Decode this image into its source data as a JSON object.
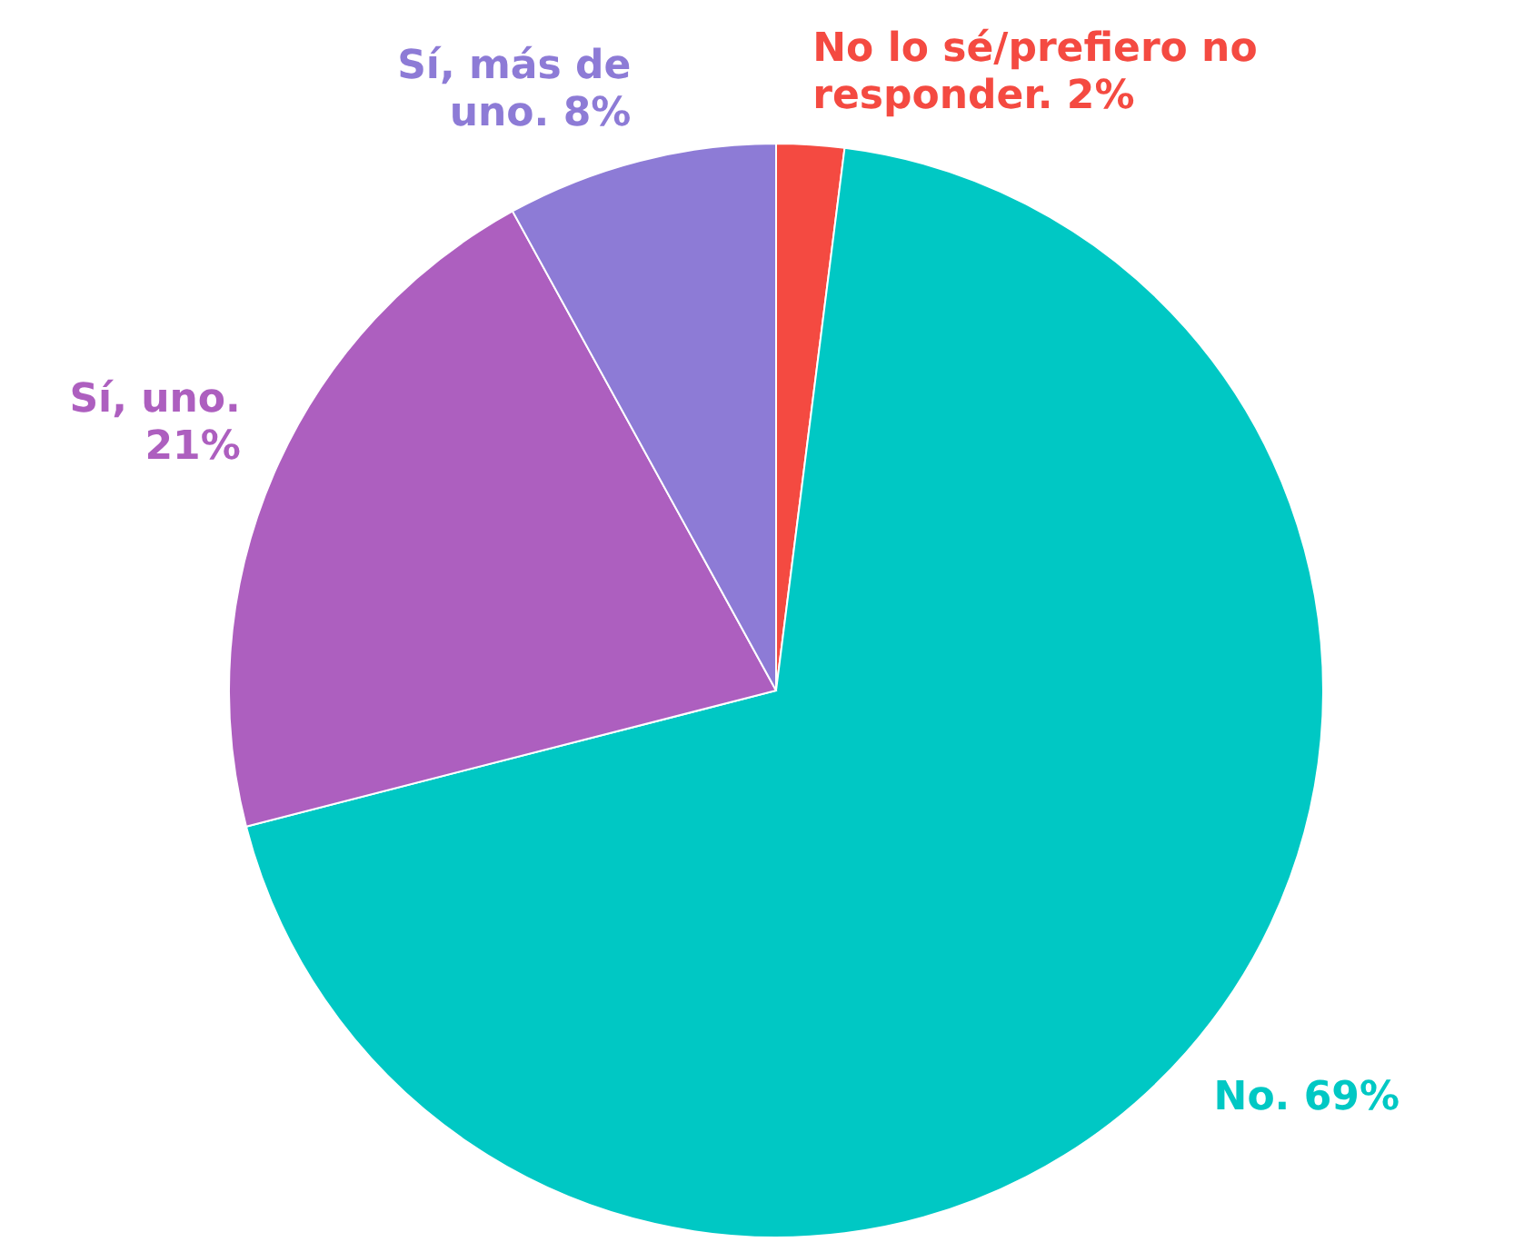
{
  "chart_data": {
    "type": "pie",
    "categories": [
      "No lo sé/prefiero no responder.",
      "No.",
      "Sí, uno.",
      "Sí, más de uno."
    ],
    "values": [
      2,
      69,
      21,
      8
    ],
    "value_labels": [
      "2%",
      "69%",
      "21%",
      "8%"
    ],
    "colors": [
      "#f44a41",
      "#00c8c4",
      "#ad5fbf",
      "#8d7bd6"
    ]
  }
}
